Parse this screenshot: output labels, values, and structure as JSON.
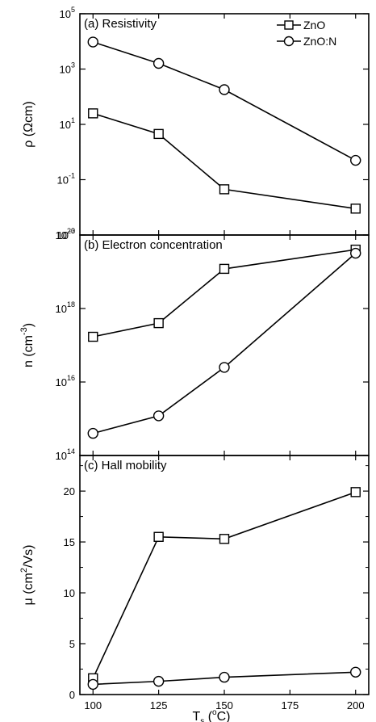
{
  "chart_data": [
    {
      "type": "line",
      "panel_label": "(a) Resistivity",
      "ylabel": "ρ (Ωcm)",
      "yscale": "log",
      "ylim": [
        0.001,
        100000
      ],
      "yticks": [
        {
          "value": 0.001,
          "base": "10",
          "exp": "-3"
        },
        {
          "value": 0.1,
          "base": "10",
          "exp": "-1"
        },
        {
          "value": 10,
          "base": "10",
          "exp": "1"
        },
        {
          "value": 1000,
          "base": "10",
          "exp": "3"
        },
        {
          "value": 100000,
          "base": "10",
          "exp": "5"
        }
      ],
      "legend": {
        "position": "top-right",
        "entries": [
          "ZnO",
          "ZnO:N"
        ]
      },
      "series": [
        {
          "name": "ZnO",
          "marker": "square",
          "x": [
            100,
            125,
            150,
            200
          ],
          "y": [
            25,
            4.5,
            0.045,
            0.009
          ]
        },
        {
          "name": "ZnO:N",
          "marker": "circle",
          "x": [
            100,
            125,
            150,
            200
          ],
          "y": [
            9500,
            1600,
            180,
            0.5
          ]
        }
      ]
    },
    {
      "type": "line",
      "panel_label": "(b) Electron concentration",
      "ylabel_base": "n (cm",
      "ylabel_exp": "-3",
      "ylabel_close": ")",
      "yscale": "log",
      "ylim": [
        100000000000000.0,
        1e+20
      ],
      "yticks": [
        {
          "value": 100000000000000.0,
          "base": "10",
          "exp": "14"
        },
        {
          "value": 1e+16,
          "base": "10",
          "exp": "16"
        },
        {
          "value": 1e+18,
          "base": "10",
          "exp": "18"
        },
        {
          "value": 1e+20,
          "base": "10",
          "exp": "20"
        }
      ],
      "series": [
        {
          "name": "ZnO",
          "marker": "square",
          "x": [
            100,
            125,
            150,
            200
          ],
          "y": [
            1.7e+17,
            4e+17,
            1.2e+19,
            4e+19
          ]
        },
        {
          "name": "ZnO:N",
          "marker": "circle",
          "x": [
            100,
            125,
            150,
            200
          ],
          "y": [
            400000000000000.0,
            1200000000000000.0,
            2.5e+16,
            3.2e+19
          ]
        }
      ]
    },
    {
      "type": "line",
      "panel_label": "(c) Hall mobility",
      "ylabel_base": "μ (cm",
      "ylabel_exp": "2",
      "ylabel_close": "/Vs)",
      "yscale": "linear",
      "ylim": [
        0,
        23.5
      ],
      "yticks": [
        {
          "value": 0,
          "base": "0"
        },
        {
          "value": 5,
          "base": "5"
        },
        {
          "value": 10,
          "base": "10"
        },
        {
          "value": 15,
          "base": "15"
        },
        {
          "value": 20,
          "base": "20"
        }
      ],
      "series": [
        {
          "name": "ZnO",
          "marker": "square",
          "x": [
            100,
            125,
            150,
            200
          ],
          "y": [
            1.6,
            15.5,
            15.3,
            19.9
          ]
        },
        {
          "name": "ZnO:N",
          "marker": "circle",
          "x": [
            100,
            125,
            150,
            200
          ],
          "y": [
            1.0,
            1.3,
            1.7,
            2.2
          ]
        }
      ]
    }
  ],
  "x_axis": {
    "label_base": "T",
    "label_sub": "s",
    "label_rest": "(",
    "label_degree": "o",
    "label_unit": "C)",
    "xlim": [
      95,
      205
    ],
    "ticks": [
      "100",
      "125",
      "150",
      "175",
      "200"
    ]
  }
}
